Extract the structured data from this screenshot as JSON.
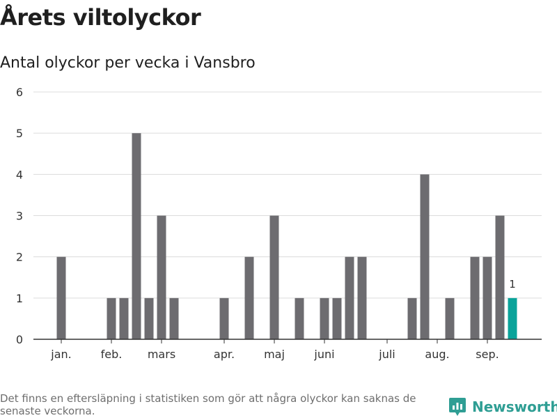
{
  "header": {
    "title": "Årets viltolyckor",
    "subtitle": "Antal olyckor per vecka i Vansbro"
  },
  "footer": {
    "note": "Det finns en eftersläpning i statistiken som gör att några olyckor kan saknas de senaste veckorna.",
    "brand": "Newsworthy"
  },
  "colors": {
    "bar": "#6d6c70",
    "highlight": "#0aa39a",
    "grid": "#dcdcdc",
    "axis": "#333333",
    "brand": "#2f9e94"
  },
  "chart_data": {
    "type": "bar",
    "title": "Årets viltolyckor",
    "subtitle": "Antal olyckor per vecka i Vansbro",
    "xlabel": "",
    "ylabel": "",
    "ylim": [
      0,
      6
    ],
    "y_ticks": [
      0,
      1,
      2,
      3,
      4,
      5,
      6
    ],
    "grid": true,
    "legend": "none",
    "x_ticks": [
      {
        "label": "jan.",
        "week": 2
      },
      {
        "label": "feb.",
        "week": 6
      },
      {
        "label": "mars",
        "week": 10
      },
      {
        "label": "apr.",
        "week": 15
      },
      {
        "label": "maj",
        "week": 19
      },
      {
        "label": "juni",
        "week": 23
      },
      {
        "label": "juli",
        "week": 28
      },
      {
        "label": "aug.",
        "week": 32
      },
      {
        "label": "sep.",
        "week": 36
      }
    ],
    "weeks": [
      1,
      2,
      3,
      4,
      5,
      6,
      7,
      8,
      9,
      10,
      11,
      12,
      13,
      14,
      15,
      16,
      17,
      18,
      19,
      20,
      21,
      22,
      23,
      24,
      25,
      26,
      27,
      28,
      29,
      30,
      31,
      32,
      33,
      34,
      35,
      36,
      37,
      38
    ],
    "values": [
      0,
      2,
      0,
      0,
      0,
      1,
      1,
      5,
      1,
      3,
      1,
      0,
      0,
      0,
      1,
      0,
      2,
      0,
      3,
      0,
      1,
      0,
      1,
      1,
      2,
      2,
      0,
      0,
      0,
      1,
      4,
      0,
      1,
      0,
      2,
      2,
      3,
      1
    ],
    "highlight": {
      "week": 38,
      "value": 1,
      "label": "1"
    }
  }
}
